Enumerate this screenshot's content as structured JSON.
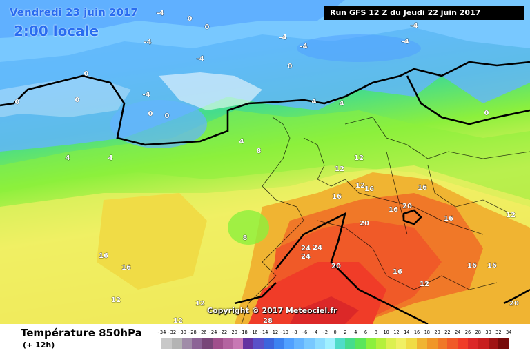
{
  "header": {
    "title": "Vendredi 23 juin 2017",
    "local_time": "2:00 locale",
    "run_info": "Run GFS 12 Z du Jeudi 22 juin 2017"
  },
  "copyright": "Copyright © 2017 Meteociel.fr",
  "footer": {
    "parameter": "Température 850hPa",
    "lead_time": "(+ 12h)"
  },
  "legend": {
    "labels": [
      "-34",
      "-32",
      "-30",
      "-28",
      "-26",
      "-24",
      "-22",
      "-20",
      "-18",
      "-16",
      "-14",
      "-12",
      "-10",
      "-8",
      "-6",
      "-4",
      "-2",
      "0",
      "2",
      "4",
      "6",
      "8",
      "10",
      "12",
      "14",
      "16",
      "18",
      "20",
      "22",
      "24",
      "26",
      "28",
      "30",
      "32",
      "34"
    ],
    "colors": [
      "#c8c8c8",
      "#b4b4b4",
      "#a08ca8",
      "#8c6496",
      "#784678",
      "#a0508c",
      "#b464a0",
      "#c878b4",
      "#6432a0",
      "#5a50c8",
      "#3c64dc",
      "#3c82f0",
      "#50a0ff",
      "#64b4ff",
      "#78c8ff",
      "#8cdcff",
      "#a0f0ff",
      "#50dcc8",
      "#46dc8c",
      "#5ae65a",
      "#8cf03c",
      "#b4f03c",
      "#dcf050",
      "#f0f064",
      "#f0dc46",
      "#f0b432",
      "#f09628",
      "#f07828",
      "#f05a28",
      "#f03c28",
      "#dc2828",
      "#c81e1e",
      "#a01414",
      "#780a0a"
    ]
  },
  "map_labels": [
    {
      "text": "-4"
    },
    {
      "text": "0"
    },
    {
      "text": "0"
    },
    {
      "text": "-4"
    },
    {
      "text": "-4"
    },
    {
      "text": "-4"
    },
    {
      "text": "-4"
    },
    {
      "text": "0"
    },
    {
      "text": "0"
    },
    {
      "text": "0"
    },
    {
      "text": "0"
    },
    {
      "text": "0"
    },
    {
      "text": "0"
    },
    {
      "text": "4"
    },
    {
      "text": "4"
    },
    {
      "text": "4"
    },
    {
      "text": "4"
    },
    {
      "text": "4"
    },
    {
      "text": "8"
    },
    {
      "text": "8"
    },
    {
      "text": "12"
    },
    {
      "text": "12"
    },
    {
      "text": "16"
    },
    {
      "text": "16"
    },
    {
      "text": "16"
    },
    {
      "text": "12"
    },
    {
      "text": "16"
    },
    {
      "text": "20"
    },
    {
      "text": "24"
    },
    {
      "text": "24"
    },
    {
      "text": "24"
    },
    {
      "text": "20"
    },
    {
      "text": "20"
    },
    {
      "text": "16"
    },
    {
      "text": "16"
    },
    {
      "text": "16"
    },
    {
      "text": "12"
    },
    {
      "text": "16"
    },
    {
      "text": "16"
    },
    {
      "text": "16"
    },
    {
      "text": "12"
    },
    {
      "text": "12"
    },
    {
      "text": "28"
    },
    {
      "text": "12"
    },
    {
      "text": "-4"
    },
    {
      "text": "-4"
    },
    {
      "text": "-4"
    },
    {
      "text": "0"
    },
    {
      "text": "20"
    },
    {
      "text": "12"
    }
  ]
}
